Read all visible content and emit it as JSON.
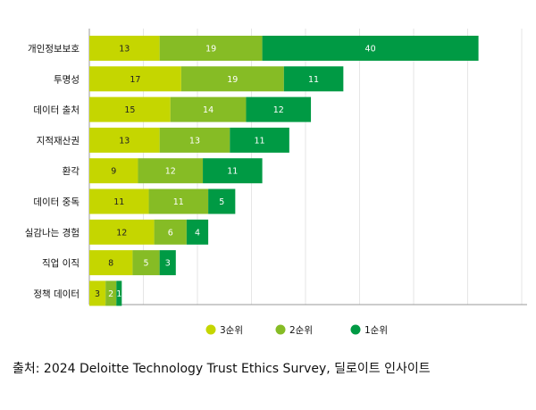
{
  "chart_data": {
    "type": "bar",
    "orientation": "horizontal",
    "stacked": true,
    "categories": [
      "개인정보보호",
      "투명성",
      "데이터 출처",
      "지적재산권",
      "환각",
      "데이터 중독",
      "실감나는 경험",
      "직업 이직",
      "정책 데이터"
    ],
    "series": [
      {
        "name": "3순위",
        "color": "#c5d600",
        "text_color": "#222222",
        "values": [
          13,
          17,
          15,
          13,
          9,
          11,
          12,
          8,
          3
        ]
      },
      {
        "name": "2순위",
        "color": "#86bc25",
        "text_color": "#ffffff",
        "values": [
          19,
          19,
          14,
          13,
          12,
          11,
          6,
          5,
          2
        ]
      },
      {
        "name": "1순위",
        "color": "#009a44",
        "text_color": "#ffffff",
        "values": [
          40,
          11,
          12,
          11,
          11,
          5,
          4,
          3,
          1
        ]
      }
    ],
    "xlim": [
      0,
      80
    ],
    "grid": true,
    "legend": "bottom-center"
  },
  "source_text": "출처: 2024 Deloitte Technology Trust Ethics Survey, 딜로이트 인사이트"
}
